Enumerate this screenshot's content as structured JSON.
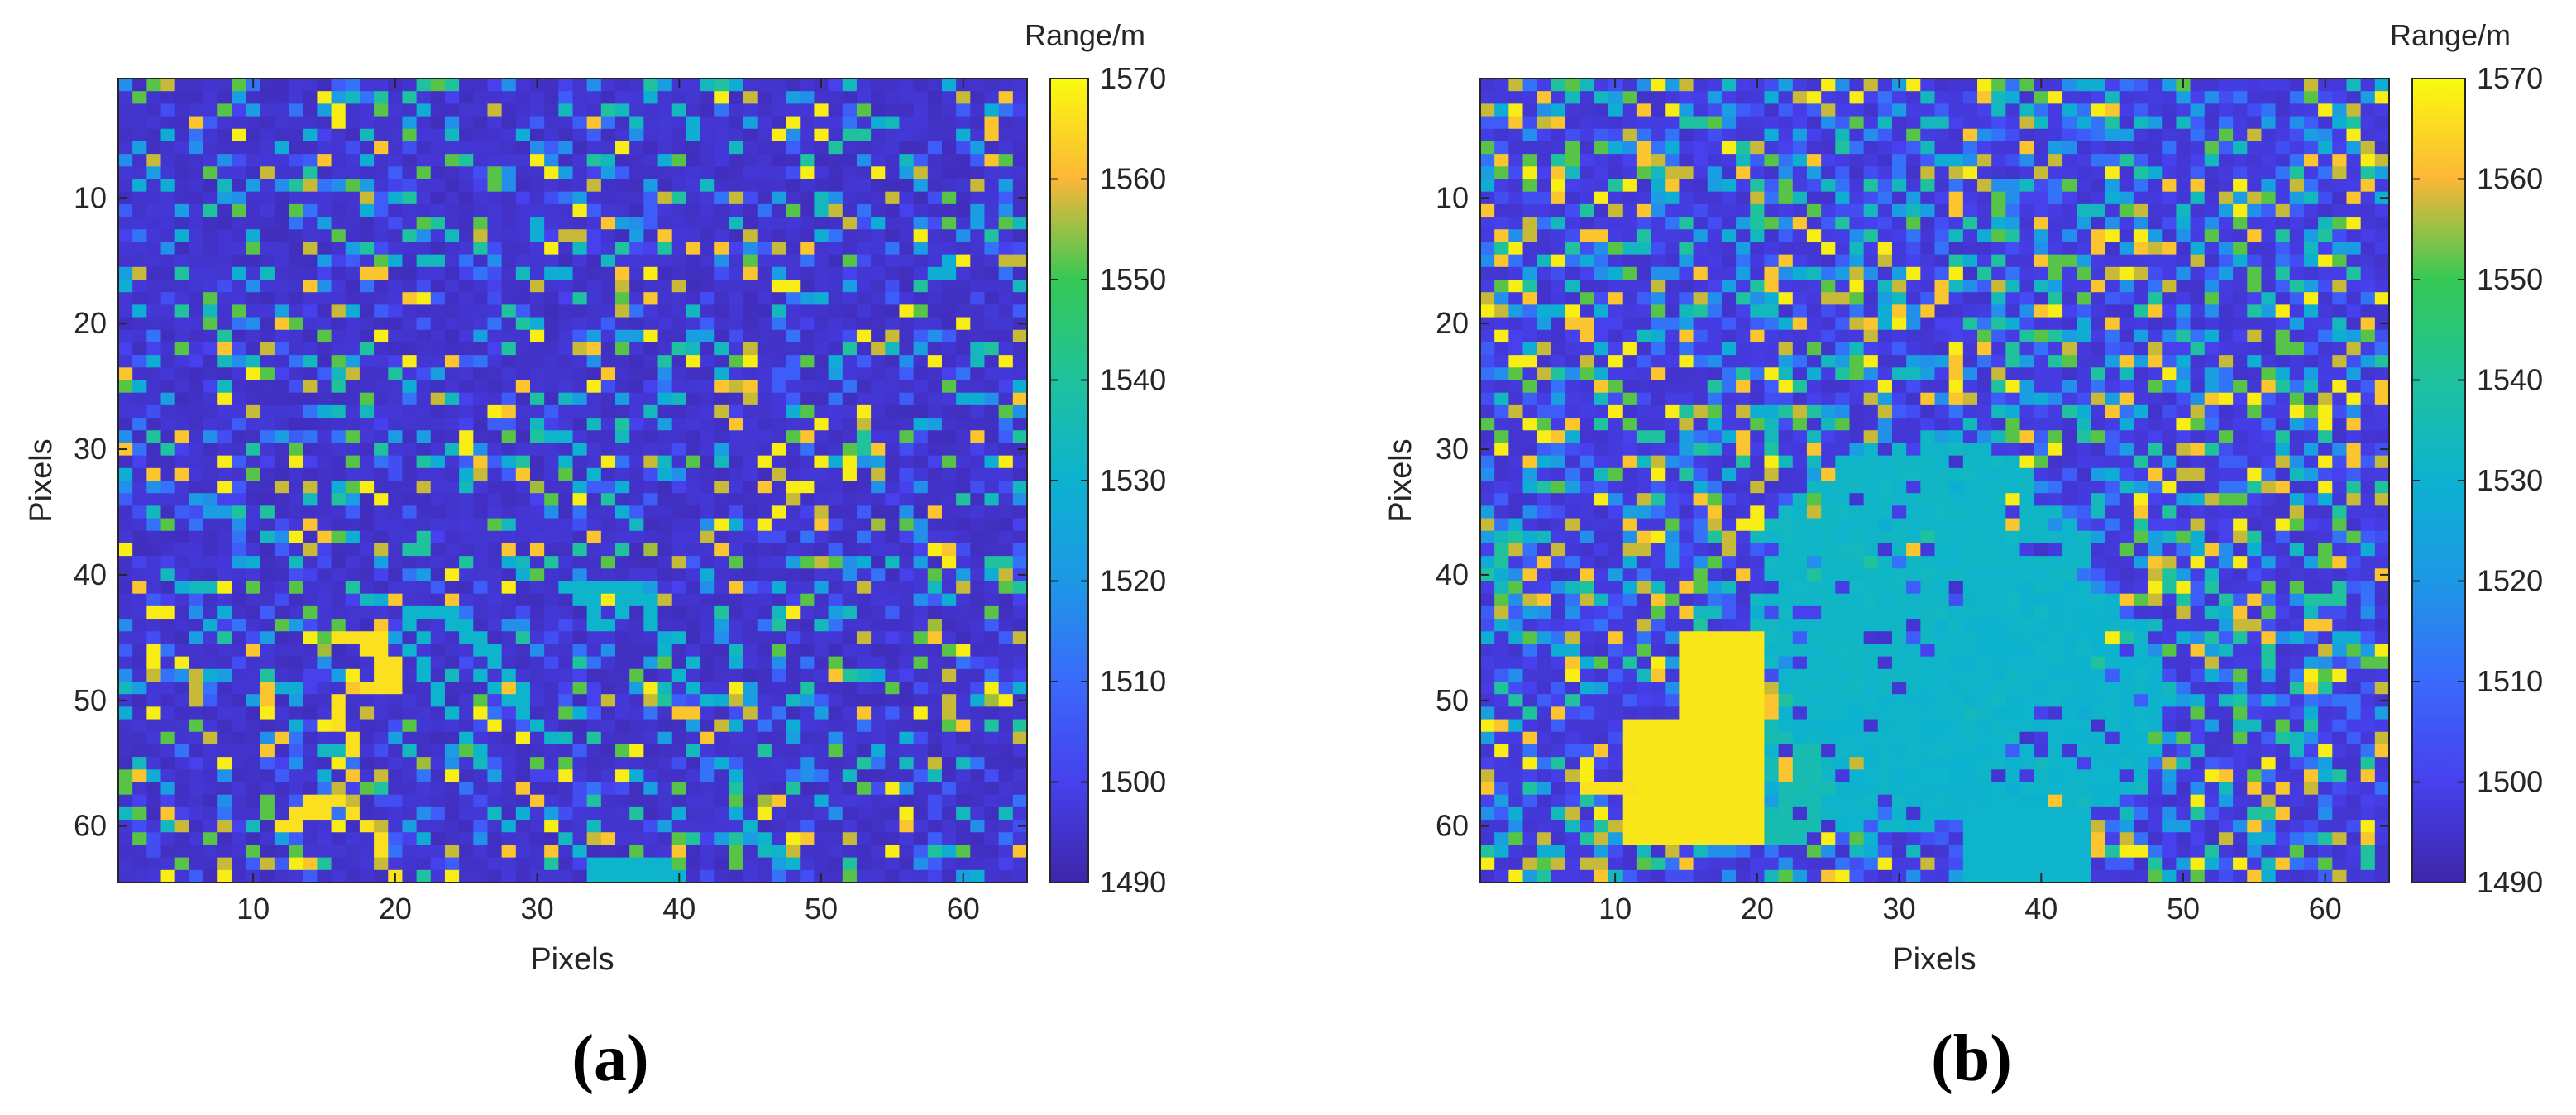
{
  "figure": {
    "panels": [
      {
        "caption": "(a)"
      },
      {
        "caption": "(b)"
      }
    ]
  },
  "chart_data": [
    {
      "type": "heatmap",
      "id": "a",
      "caption": "(a)",
      "xlabel": "Pixels",
      "ylabel": "Pixels",
      "xlim": [
        0.5,
        64.5
      ],
      "ylim": [
        0.5,
        64.5
      ],
      "y_reversed": true,
      "x_ticks": [
        10,
        20,
        30,
        40,
        50,
        60
      ],
      "y_ticks": [
        10,
        20,
        30,
        40,
        50,
        60
      ],
      "grid_size": [
        64,
        64
      ],
      "colorbar": {
        "title": "Range/m",
        "min": 1490,
        "max": 1570,
        "ticks": [
          1490,
          1500,
          1510,
          1520,
          1530,
          1540,
          1550,
          1560,
          1570
        ],
        "colormap": "parula"
      },
      "background_value": 1495,
      "noise_density": 0.33,
      "seed": 11,
      "regions": [
        {
          "value": 1566,
          "points": [
            [
              14,
              58
            ],
            [
              15,
              58
            ],
            [
              16,
              58
            ],
            [
              13,
              59
            ],
            [
              14,
              59
            ],
            [
              15,
              59
            ],
            [
              17,
              59
            ],
            [
              12,
              60
            ],
            [
              13,
              60
            ],
            [
              16,
              45
            ],
            [
              17,
              45
            ],
            [
              18,
              45
            ],
            [
              19,
              45
            ],
            [
              18,
              46
            ],
            [
              19,
              46
            ],
            [
              19,
              47
            ],
            [
              20,
              47
            ],
            [
              19,
              48
            ],
            [
              20,
              48
            ],
            [
              18,
              49
            ],
            [
              19,
              49
            ],
            [
              20,
              49
            ],
            [
              16,
              50
            ],
            [
              16,
              51
            ],
            [
              16,
              52
            ],
            [
              17,
              53
            ],
            [
              17,
              54
            ],
            [
              18,
              60
            ],
            [
              19,
              61
            ],
            [
              19,
              62
            ],
            [
              20,
              64
            ]
          ]
        },
        {
          "value": 1531,
          "points": [
            [
              21,
              43
            ],
            [
              22,
              43
            ],
            [
              23,
              43
            ],
            [
              24,
              43
            ],
            [
              21,
              44
            ],
            [
              24,
              44
            ],
            [
              25,
              44
            ],
            [
              22,
              45
            ],
            [
              25,
              45
            ],
            [
              26,
              45
            ],
            [
              21,
              46
            ],
            [
              26,
              46
            ],
            [
              27,
              46
            ],
            [
              22,
              47
            ],
            [
              27,
              47
            ],
            [
              22,
              48
            ],
            [
              26,
              48
            ],
            [
              28,
              48
            ],
            [
              23,
              49
            ],
            [
              27,
              49
            ],
            [
              29,
              49
            ],
            [
              23,
              50
            ],
            [
              28,
              50
            ],
            [
              29,
              50
            ],
            [
              24,
              51
            ],
            [
              29,
              51
            ],
            [
              30,
              52
            ],
            [
              25,
              53
            ],
            [
              31,
              53
            ],
            [
              26,
              54
            ],
            [
              32,
              41
            ],
            [
              33,
              41
            ],
            [
              34,
              41
            ],
            [
              35,
              41
            ],
            [
              36,
              41
            ],
            [
              37,
              41
            ],
            [
              33,
              42
            ],
            [
              34,
              42
            ],
            [
              36,
              42
            ],
            [
              37,
              42
            ],
            [
              38,
              42
            ],
            [
              34,
              43
            ],
            [
              36,
              43
            ],
            [
              38,
              43
            ],
            [
              34,
              44
            ],
            [
              35,
              44
            ],
            [
              38,
              44
            ],
            [
              40,
              45
            ],
            [
              39,
              46
            ],
            [
              41,
              47
            ],
            [
              40,
              48
            ],
            [
              41,
              49
            ],
            [
              42,
              50
            ],
            [
              31,
              29
            ],
            [
              32,
              29
            ],
            [
              33,
              30
            ],
            [
              32,
              31
            ],
            [
              34,
              32
            ],
            [
              33,
              62
            ],
            [
              34,
              63
            ],
            [
              35,
              63
            ],
            [
              36,
              63
            ],
            [
              37,
              63
            ],
            [
              38,
              63
            ],
            [
              39,
              63
            ],
            [
              34,
              64
            ],
            [
              35,
              64
            ],
            [
              36,
              64
            ],
            [
              37,
              64
            ],
            [
              38,
              64
            ],
            [
              39,
              64
            ],
            [
              40,
              64
            ],
            [
              45,
              60
            ],
            [
              46,
              61
            ],
            [
              47,
              62
            ],
            [
              48,
              63
            ]
          ]
        },
        {
          "value": 1553,
          "points": [
            [
              15,
              46
            ],
            [
              22,
              55
            ],
            [
              30,
              33
            ],
            [
              38,
              38
            ],
            [
              46,
              58
            ],
            [
              54,
              36
            ],
            [
              58,
              44
            ],
            [
              62,
              50
            ]
          ]
        }
      ]
    },
    {
      "type": "heatmap",
      "id": "b",
      "caption": "(b)",
      "xlabel": "Pixels",
      "ylabel": "Pixels",
      "xlim": [
        0.5,
        64.5
      ],
      "ylim": [
        0.5,
        64.5
      ],
      "y_reversed": true,
      "x_ticks": [
        10,
        20,
        30,
        40,
        50,
        60
      ],
      "y_ticks": [
        10,
        20,
        30,
        40,
        50,
        60
      ],
      "grid_size": [
        64,
        64
      ],
      "colorbar": {
        "title": "Range/m",
        "min": 1490,
        "max": 1570,
        "ticks": [
          1490,
          1500,
          1510,
          1520,
          1530,
          1540,
          1550,
          1560,
          1570
        ],
        "colormap": "parula"
      },
      "background_value": 1497,
      "noise_density": 0.55,
      "seed": 29,
      "blobs": [
        {
          "value": 1532,
          "cx": 32,
          "cy": 42,
          "rx": 12,
          "ry": 13,
          "fill": 0.85
        },
        {
          "value": 1531,
          "cx": 40,
          "cy": 50,
          "rx": 9,
          "ry": 10,
          "fill": 0.8
        },
        {
          "value": 1531,
          "cx": 28,
          "cy": 55,
          "rx": 9,
          "ry": 6,
          "fill": 0.75
        },
        {
          "value": 1536,
          "cx": 21,
          "cy": 57,
          "rx": 4,
          "ry": 5,
          "fill": 0.7
        }
      ],
      "rects": [
        {
          "value": 1567,
          "x0": 15,
          "x1": 20,
          "y0": 45,
          "y1": 61
        },
        {
          "value": 1567,
          "x0": 11,
          "x1": 14,
          "y0": 52,
          "y1": 61
        },
        {
          "value": 1566,
          "x0": 8,
          "x1": 11,
          "y0": 57,
          "y1": 57
        },
        {
          "value": 1531,
          "x0": 35,
          "x1": 43,
          "y0": 59,
          "y1": 64
        }
      ]
    }
  ]
}
